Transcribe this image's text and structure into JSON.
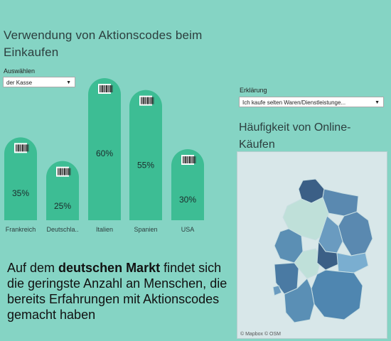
{
  "title": "Verwendung von Aktionscodes beim Einkaufen",
  "filter": {
    "label": "Auswählen",
    "value": "der Kasse"
  },
  "legend": {
    "label": "Erklärung",
    "value": "Ich kaufe selten Waren/Dienstleistunge..."
  },
  "map": {
    "title": "Häufigkeit von Online-Käufen",
    "attribution": "© Mapbox  © OSM"
  },
  "caption": {
    "before": "Auf dem ",
    "bold": "deutschen Markt",
    "after": " findet sich die geringste Anzahl an Menschen, die bereits Erfahrungen mit Aktionscodes gemacht haben"
  },
  "colors": {
    "background": "#85d4c4",
    "bar": "#3dbd94",
    "bar_top": "#2eaa82"
  },
  "chart_data": {
    "type": "bar",
    "categories": [
      "Frankreich",
      "Deutschla..",
      "Italien",
      "Spanien",
      "USA"
    ],
    "values": [
      35,
      25,
      60,
      55,
      30
    ],
    "value_labels": [
      "35%",
      "25%",
      "60%",
      "55%",
      "30%"
    ],
    "ylim": [
      0,
      60
    ],
    "title": "Verwendung von Aktionscodes beim Einkaufen",
    "icon": "barcode-icon"
  }
}
